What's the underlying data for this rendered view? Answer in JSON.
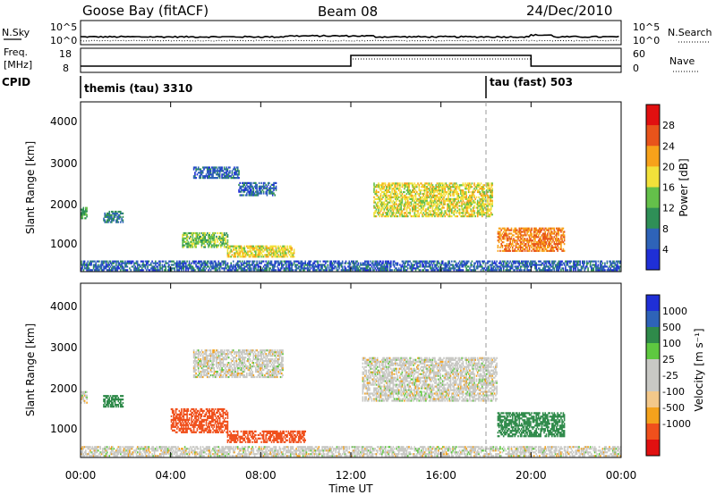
{
  "header": {
    "station": "Goose Bay (fitACF)",
    "beam": "Beam 08",
    "date": "24/Dec/2010"
  },
  "top_panels": {
    "nsky_label": "N.Sky",
    "nsearch_label": "N.Search",
    "freq_label_line1": "Freq.",
    "freq_label_line2": "[MHz]",
    "nave_label": "Nave",
    "cpid_label": "CPID",
    "nsky_ticks": [
      "10^5",
      "10^0"
    ],
    "nsearch_ticks": [
      "10^5",
      "10^0"
    ],
    "freq_ticks": [
      "18",
      "8"
    ],
    "nave_ticks": [
      "60",
      "0"
    ],
    "cpid_segments": [
      {
        "label": "themis (tau) 3310",
        "start_hour": 0
      },
      {
        "label": "tau (fast) 503",
        "start_hour": 18
      }
    ]
  },
  "power_panel": {
    "ylabel": "Slant Range [km]",
    "yticks": [
      "4000",
      "3000",
      "2000",
      "1000"
    ],
    "colorbar_label": "Power [dB]",
    "colorbar_ticks": [
      "28",
      "24",
      "20",
      "16",
      "12",
      "8",
      "4"
    ]
  },
  "velocity_panel": {
    "ylabel": "Slant Range [km]",
    "yticks": [
      "4000",
      "3000",
      "2000",
      "1000"
    ],
    "colorbar_label": "Velocity [m s⁻¹]",
    "colorbar_ticks": [
      "1000",
      "500",
      "100",
      "25",
      "-25",
      "-100",
      "-500",
      "-1000"
    ]
  },
  "xaxis": {
    "label": "Time UT",
    "ticks": [
      "00:00",
      "04:00",
      "08:00",
      "12:00",
      "16:00",
      "20:00",
      "00:00"
    ]
  },
  "chart_data": {
    "type": "heatmap",
    "title": "Goose Bay (fitACF)  Beam 08  24/Dec/2010",
    "xlabel": "Time UT",
    "ylabel": "Slant Range [km]",
    "xlim_hours": [
      0,
      24
    ],
    "ylim_km": [
      180,
      4600
    ],
    "grid": false,
    "colors": {
      "power_scale": [
        "#1f2fd6",
        "#2e63b8",
        "#2f8f57",
        "#64c04a",
        "#f2e13a",
        "#f7a21a",
        "#e8541b",
        "#e11010"
      ],
      "velocity_scale": [
        "#e11010",
        "#f0501c",
        "#f4a21c",
        "#f3c88a",
        "#c8c8c4",
        "#c8c8c4",
        "#5ec840",
        "#2f8a4a",
        "#2e63b8",
        "#1f2fd6"
      ]
    },
    "power_echo_regions": [
      {
        "t_start": 0.0,
        "t_end": 0.3,
        "r_min": 1550,
        "r_max": 1850,
        "power_db": 14
      },
      {
        "t_start": 1.0,
        "t_end": 1.9,
        "r_min": 1450,
        "r_max": 1750,
        "power_db": 10
      },
      {
        "t_start": 5.0,
        "t_end": 7.0,
        "r_min": 2600,
        "r_max": 2900,
        "power_db": 8
      },
      {
        "t_start": 7.0,
        "t_end": 8.7,
        "r_min": 2150,
        "r_max": 2500,
        "power_db": 8
      },
      {
        "t_start": 4.5,
        "t_end": 6.5,
        "r_min": 800,
        "r_max": 1200,
        "power_db": 16
      },
      {
        "t_start": 6.5,
        "t_end": 9.5,
        "r_min": 550,
        "r_max": 850,
        "power_db": 20
      },
      {
        "t_start": 13.0,
        "t_end": 18.3,
        "r_min": 1600,
        "r_max": 2500,
        "power_db": 20
      },
      {
        "t_start": 18.5,
        "t_end": 21.5,
        "r_min": 700,
        "r_max": 1300,
        "power_db": 26
      },
      {
        "t_start": 0.0,
        "t_end": 24.0,
        "r_min": 200,
        "r_max": 450,
        "power_db": 8
      }
    ],
    "velocity_echo_regions": [
      {
        "t_start": 0.0,
        "t_end": 0.3,
        "r_min": 1550,
        "r_max": 1850,
        "velocity": 0
      },
      {
        "t_start": 1.0,
        "t_end": 1.9,
        "r_min": 1450,
        "r_max": 1750,
        "velocity": 200
      },
      {
        "t_start": 5.0,
        "t_end": 9.0,
        "r_min": 2200,
        "r_max": 2900,
        "velocity": 0
      },
      {
        "t_start": 4.0,
        "t_end": 6.5,
        "r_min": 800,
        "r_max": 1400,
        "velocity": -200
      },
      {
        "t_start": 6.5,
        "t_end": 10.0,
        "r_min": 550,
        "r_max": 850,
        "velocity": -150
      },
      {
        "t_start": 12.5,
        "t_end": 18.5,
        "r_min": 1600,
        "r_max": 2700,
        "velocity": 0
      },
      {
        "t_start": 18.5,
        "t_end": 21.5,
        "r_min": 700,
        "r_max": 1300,
        "velocity": 150
      },
      {
        "t_start": 0.0,
        "t_end": 24.0,
        "r_min": 200,
        "r_max": 450,
        "velocity": 0
      }
    ],
    "frequency_mhz": [
      {
        "t_start": 0,
        "t_end": 12.0,
        "value": 10.5
      },
      {
        "t_start": 12.0,
        "t_end": 20.0,
        "value": 15.5
      },
      {
        "t_start": 20.0,
        "t_end": 24.0,
        "value": 10.5
      }
    ],
    "cpid_change_hour": 18.0
  }
}
